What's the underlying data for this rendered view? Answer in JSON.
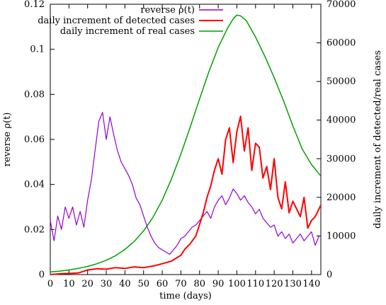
{
  "chart_data": {
    "type": "line",
    "xlabel": "time (days)",
    "ylabel_left": "reverse ρ(t)",
    "ylabel_right": "daily increment of detected/real cases",
    "xlim": [
      0,
      145
    ],
    "ylim_left": [
      0,
      0.12
    ],
    "ylim_right": [
      0,
      70000
    ],
    "x_ticks": [
      0,
      10,
      20,
      30,
      40,
      50,
      60,
      70,
      80,
      90,
      100,
      110,
      120,
      130,
      140
    ],
    "y_left_ticks": [
      "0",
      "0.02",
      "0.04",
      "0.06",
      "0.08",
      "0.1",
      "0.12"
    ],
    "y_left_tick_values": [
      0,
      0.02,
      0.04,
      0.06,
      0.08,
      0.1,
      0.12
    ],
    "y_right_ticks": [
      "0",
      "10000",
      "20000",
      "30000",
      "40000",
      "50000",
      "60000",
      "70000"
    ],
    "y_right_tick_values": [
      0,
      10000,
      20000,
      30000,
      40000,
      50000,
      60000,
      70000
    ],
    "grid": false,
    "legend_position": "top-right",
    "series": [
      {
        "name": "reverse ρ(t)",
        "axis": "left",
        "color": "#9400d3",
        "x": [
          0,
          2,
          4,
          6,
          8,
          10,
          12,
          14,
          16,
          18,
          20,
          22,
          24,
          26,
          28,
          30,
          32,
          34,
          36,
          38,
          40,
          42,
          44,
          46,
          48,
          50,
          52,
          54,
          56,
          58,
          60,
          62,
          64,
          66,
          68,
          70,
          72,
          74,
          76,
          78,
          80,
          82,
          84,
          86,
          88,
          90,
          92,
          94,
          96,
          98,
          100,
          102,
          104,
          106,
          108,
          110,
          112,
          114,
          116,
          118,
          120,
          122,
          124,
          126,
          128,
          130,
          132,
          134,
          136,
          138,
          140,
          142,
          144
        ],
        "y": [
          0.024,
          0.015,
          0.026,
          0.02,
          0.03,
          0.025,
          0.03,
          0.022,
          0.028,
          0.021,
          0.033,
          0.042,
          0.055,
          0.068,
          0.072,
          0.06,
          0.07,
          0.062,
          0.055,
          0.05,
          0.047,
          0.044,
          0.04,
          0.034,
          0.031,
          0.026,
          0.021,
          0.017,
          0.014,
          0.012,
          0.011,
          0.01,
          0.009,
          0.011,
          0.013,
          0.016,
          0.017,
          0.019,
          0.021,
          0.022,
          0.024,
          0.026,
          0.028,
          0.025,
          0.03,
          0.033,
          0.035,
          0.031,
          0.034,
          0.038,
          0.036,
          0.033,
          0.035,
          0.032,
          0.03,
          0.027,
          0.029,
          0.025,
          0.023,
          0.021,
          0.022,
          0.017,
          0.019,
          0.016,
          0.018,
          0.014,
          0.016,
          0.018,
          0.015,
          0.017,
          0.019,
          0.013,
          0.017
        ]
      },
      {
        "name": "daily increment of detected cases",
        "axis": "right",
        "color": "#ff0000",
        "x": [
          0,
          5,
          10,
          15,
          20,
          25,
          30,
          35,
          40,
          45,
          50,
          55,
          60,
          65,
          70,
          72,
          75,
          78,
          80,
          82,
          84,
          86,
          88,
          90,
          92,
          94,
          96,
          98,
          100,
          102,
          104,
          106,
          108,
          110,
          112,
          114,
          116,
          118,
          120,
          122,
          124,
          126,
          128,
          130,
          132,
          134,
          136,
          138,
          140,
          142,
          145
        ],
        "y": [
          0,
          200,
          300,
          400,
          1200,
          1500,
          1400,
          1800,
          1600,
          2000,
          1800,
          2200,
          2800,
          3500,
          5000,
          6500,
          8000,
          10000,
          13000,
          16000,
          20000,
          23000,
          27000,
          30000,
          26000,
          35000,
          38000,
          29000,
          37000,
          41000,
          32000,
          38000,
          27000,
          34000,
          33000,
          25000,
          28000,
          22000,
          30000,
          20000,
          17000,
          24000,
          16000,
          19000,
          17000,
          15000,
          20000,
          12000,
          14000,
          15000,
          18000
        ]
      },
      {
        "name": "daily increment of real cases",
        "axis": "right",
        "color": "#00a000",
        "x": [
          0,
          5,
          10,
          15,
          20,
          25,
          30,
          35,
          40,
          45,
          50,
          55,
          60,
          65,
          70,
          75,
          80,
          85,
          90,
          95,
          98,
          100,
          102,
          105,
          110,
          115,
          120,
          125,
          130,
          135,
          140,
          145
        ],
        "y": [
          700,
          900,
          1200,
          1600,
          2100,
          2800,
          3700,
          4900,
          6500,
          8600,
          11300,
          14800,
          19300,
          24800,
          31200,
          38200,
          45500,
          52500,
          58800,
          63800,
          66200,
          67200,
          67000,
          65800,
          61500,
          56500,
          51000,
          45000,
          38500,
          32500,
          28500,
          25500
        ]
      }
    ]
  }
}
